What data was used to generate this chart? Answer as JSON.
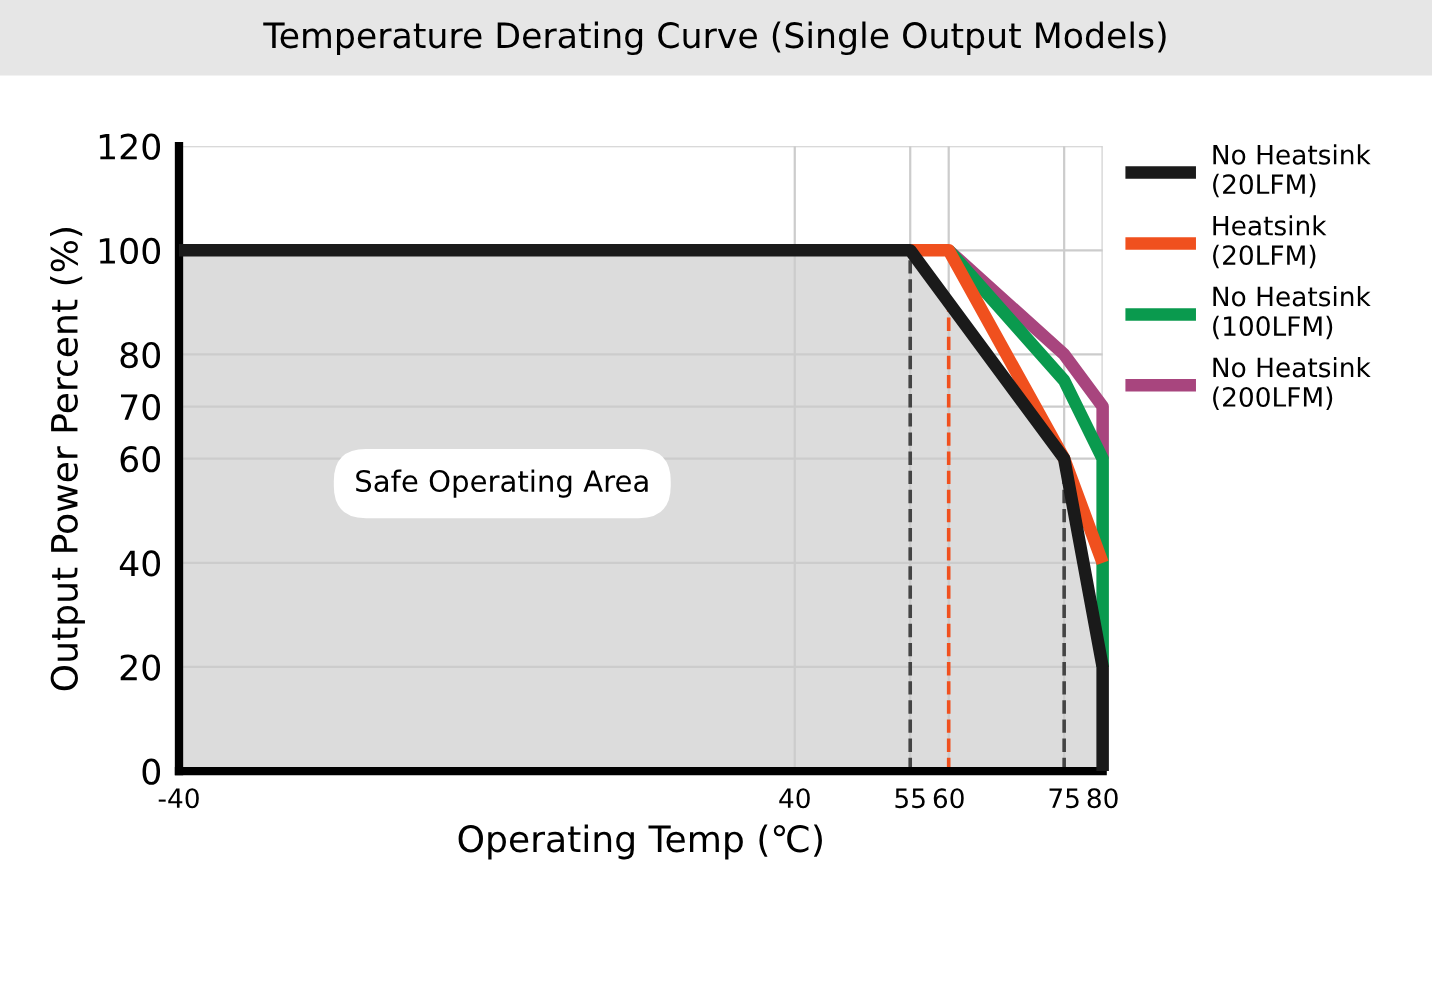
{
  "chart_data": {
    "type": "line",
    "title": "Temperature Derating Curve (Single Output Models)",
    "xlabel": "Operating Temp (℃)",
    "ylabel": "Output Power Percent (%)",
    "xlim": [
      -40,
      80
    ],
    "xticks": [
      -40,
      40,
      55,
      60,
      75,
      80
    ],
    "ylim": [
      0,
      120
    ],
    "yticks": [
      0,
      20,
      40,
      60,
      70,
      80,
      100,
      120
    ],
    "grid": true,
    "legend": "right",
    "line_style": "solid",
    "series": [
      {
        "name": "No Heatsink\n(200LFM)",
        "color": "#a8457e",
        "x": [
          60,
          75,
          80,
          80
        ],
        "values": [
          100,
          80,
          70,
          60
        ]
      },
      {
        "name": "No Heatsink\n(100LFM)",
        "color": "#0a9a4e",
        "x": [
          60,
          75,
          80,
          80
        ],
        "values": [
          100,
          75,
          60,
          20
        ]
      },
      {
        "name": "Heatsink\n(20LFM)",
        "color": "#f0501e",
        "x": [
          55,
          60,
          75,
          80
        ],
        "values": [
          100,
          100,
          60,
          40
        ]
      },
      {
        "name": "No Heatsink\n(20LFM)",
        "color": "#1a1a1a",
        "type": "area",
        "x": [
          -40,
          55,
          75,
          80,
          80
        ],
        "values": [
          100,
          100,
          60,
          20,
          0
        ]
      }
    ],
    "ref_lines": [
      {
        "axis": "x",
        "value": 55,
        "color": "#444444",
        "line_style": "dashed"
      },
      {
        "axis": "x",
        "value": 60,
        "color": "#f0501e",
        "line_style": "dashed"
      },
      {
        "axis": "x",
        "value": 75,
        "color": "#444444",
        "line_style": "dashed"
      }
    ],
    "annotations": [
      "Safe Operating Area"
    ]
  }
}
